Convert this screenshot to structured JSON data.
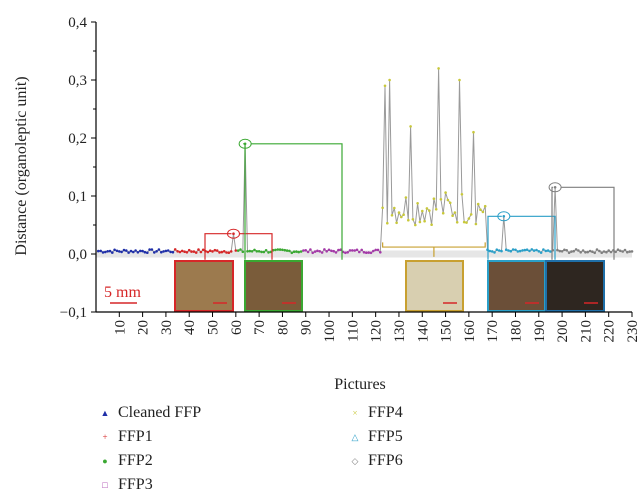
{
  "chart_data": {
    "type": "scatter",
    "xlabel": "Pictures",
    "ylabel": "Distance (organoleptic unit)",
    "xlim": [
      0,
      230
    ],
    "ylim": [
      -0.1,
      0.4
    ],
    "xticks": [
      "10",
      "20",
      "30",
      "40",
      "50",
      "60",
      "70",
      "80",
      "90",
      "100",
      "110",
      "120",
      "130",
      "140",
      "150",
      "160",
      "170",
      "180",
      "190",
      "200",
      "210",
      "220",
      "230"
    ],
    "yticks": [
      "0,4",
      "0,3",
      "0,2",
      "0,1",
      "0,0",
      "−0,1"
    ],
    "scale_label": "5 mm",
    "legend": [
      {
        "name": "Cleaned FFP",
        "color": "#1f2fa8",
        "marker": "triangle"
      },
      {
        "name": "FFP1",
        "color": "#d62728",
        "marker": "plus"
      },
      {
        "name": "FFP2",
        "color": "#3aa832",
        "marker": "circle"
      },
      {
        "name": "FFP3",
        "color": "#a43aa8",
        "marker": "square"
      },
      {
        "name": "FFP4",
        "color": "#c8c83a",
        "marker": "x"
      },
      {
        "name": "FFP5",
        "color": "#2a9fc8",
        "marker": "triangle"
      },
      {
        "name": "FFP6",
        "color": "#7f7f7f",
        "marker": "diamond"
      }
    ],
    "series": [
      {
        "name": "Cleaned FFP",
        "x_range": [
          1,
          33
        ],
        "approx_y": 0.005
      },
      {
        "name": "FFP1",
        "x_range": [
          34,
          60
        ],
        "approx_y": 0.005,
        "peaks": [
          {
            "x": 59,
            "y": 0.035
          }
        ]
      },
      {
        "name": "FFP2",
        "x_range": [
          61,
          88
        ],
        "approx_y": 0.005,
        "peaks": [
          {
            "x": 64,
            "y": 0.19
          }
        ]
      },
      {
        "name": "FFP3",
        "x_range": [
          89,
          122
        ],
        "approx_y": 0.005
      },
      {
        "name": "FFP4",
        "x_range": [
          123,
          167
        ],
        "approx_y": 0.08,
        "peaks": [
          {
            "x": 124,
            "y": 0.29
          },
          {
            "x": 126,
            "y": 0.3
          },
          {
            "x": 135,
            "y": 0.22
          },
          {
            "x": 147,
            "y": 0.32
          },
          {
            "x": 156,
            "y": 0.3
          },
          {
            "x": 162,
            "y": 0.21
          }
        ]
      },
      {
        "name": "FFP5",
        "x_range": [
          168,
          195
        ],
        "approx_y": 0.005,
        "peaks": [
          {
            "x": 175,
            "y": 0.065
          }
        ]
      },
      {
        "name": "FFP6",
        "x_range": [
          196,
          230
        ],
        "approx_y": 0.005,
        "peaks": [
          {
            "x": 197,
            "y": 0.115
          }
        ]
      }
    ]
  },
  "colors": {
    "line": "#9a9a9a",
    "axis": "#000000",
    "scale_bar": "#d62728"
  }
}
